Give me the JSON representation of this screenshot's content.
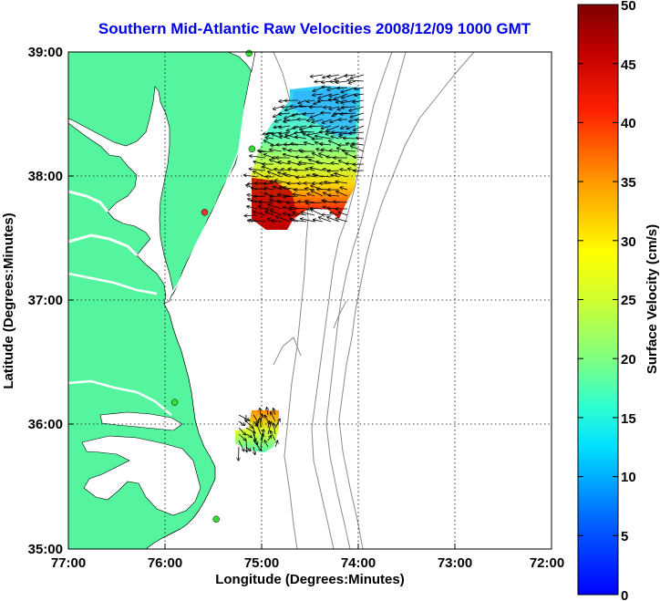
{
  "title": "Southern Mid-Atlantic Raw Velocities 2008/12/09 1000 GMT",
  "map": {
    "xlabel": "Longitude (Degrees:Minutes)",
    "ylabel": "Latitude (Degrees:Minutes)",
    "x_ticks": [
      "77:00",
      "76:00",
      "75:00",
      "74:00",
      "73:00",
      "72:00"
    ],
    "y_ticks": [
      "39:00",
      "38:00",
      "37:00",
      "36:00",
      "35:00"
    ],
    "lon_range": [
      -77,
      -72
    ],
    "lat_range": [
      35,
      39
    ],
    "grid": "dotted",
    "colors": {
      "land": "#55f5a0",
      "ocean": "#ffffff",
      "grid": "#000000",
      "bathymetry": "#8c8c8c",
      "title": "#0000e6"
    }
  },
  "colorbar": {
    "label": "Surface Velocity (cm/s)",
    "ticks": [
      "50",
      "45",
      "40",
      "35",
      "30",
      "25",
      "20",
      "15",
      "10",
      "5",
      "0"
    ],
    "range": [
      0,
      50
    ],
    "colormap": "jet"
  },
  "stations": [
    {
      "name": "station",
      "lon": -75.13,
      "lat": 38.99,
      "color": "#33dd33"
    },
    {
      "name": "station",
      "lon": -75.1,
      "lat": 38.22,
      "color": "#33dd33"
    },
    {
      "name": "station",
      "lon": -75.59,
      "lat": 37.71,
      "color": "#ee3333"
    },
    {
      "name": "station",
      "lon": -75.9,
      "lat": 36.18,
      "color": "#33dd33"
    },
    {
      "name": "station",
      "lon": -75.47,
      "lat": 35.24,
      "color": "#33dd33"
    }
  ]
}
